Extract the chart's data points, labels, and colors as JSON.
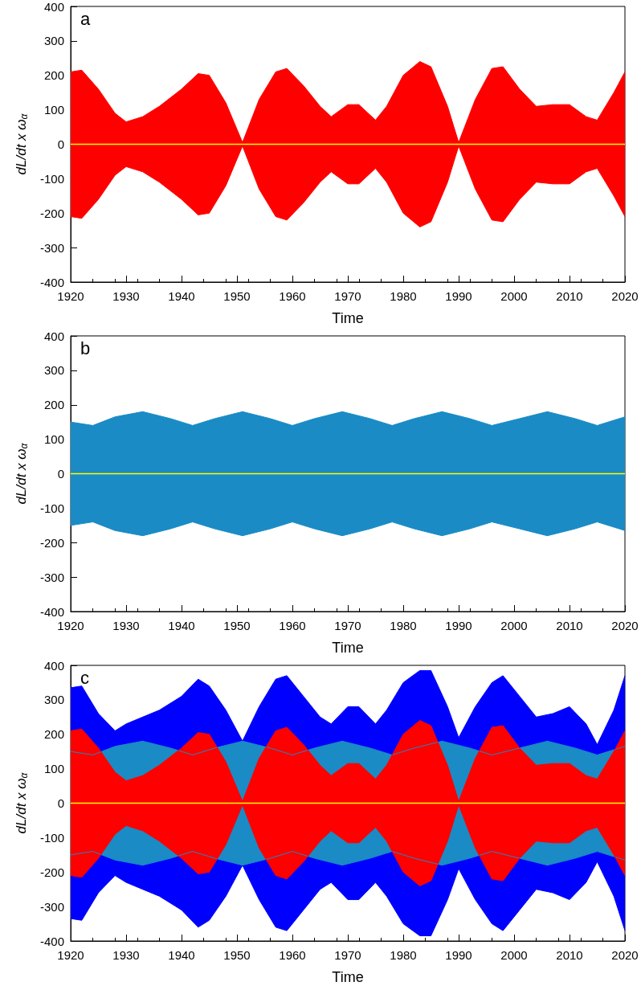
{
  "chart_data": [
    {
      "type": "area",
      "annotations": [
        "a"
      ],
      "xlabel": "Time",
      "ylabel": "dL/dt x ω$_{α}$",
      "xlim": [
        1920,
        2020
      ],
      "xticks": [
        1920,
        1930,
        1940,
        1950,
        1960,
        1970,
        1980,
        1990,
        2000,
        2010,
        2020
      ],
      "ylim": [
        -400,
        400
      ],
      "yticks": [
        -400,
        -300,
        -200,
        -100,
        0,
        100,
        200,
        300,
        400
      ],
      "ref_lines": [
        {
          "axis": "y",
          "value": 0,
          "color": "#ffff00"
        }
      ],
      "series": [
        {
          "color": "#ff0000",
          "x": [
            1920,
            1922,
            1925,
            1928,
            1930,
            1933,
            1936,
            1940,
            1943,
            1945,
            1948,
            1951,
            1954,
            1957,
            1959,
            1962,
            1965,
            1967,
            1970,
            1972,
            1975,
            1977,
            1980,
            1983,
            1985,
            1988,
            1990,
            1993,
            1996,
            1998,
            2001,
            2004,
            2007,
            2010,
            2013,
            2015,
            2018,
            2020
          ],
          "values": [
            210,
            215,
            160,
            90,
            65,
            80,
            110,
            160,
            205,
            200,
            120,
            5,
            130,
            210,
            220,
            170,
            110,
            80,
            115,
            115,
            70,
            110,
            200,
            240,
            225,
            110,
            5,
            130,
            220,
            225,
            160,
            110,
            115,
            115,
            80,
            70,
            150,
            210
          ]
        },
        {
          "color": "#ff0000",
          "x": [
            1920,
            1922,
            1925,
            1928,
            1930,
            1933,
            1936,
            1940,
            1943,
            1945,
            1948,
            1951,
            1954,
            1957,
            1959,
            1962,
            1965,
            1967,
            1970,
            1972,
            1975,
            1977,
            1980,
            1983,
            1985,
            1988,
            1990,
            1993,
            1996,
            1998,
            2001,
            2004,
            2007,
            2010,
            2013,
            2015,
            2018,
            2020
          ],
          "values": [
            -210,
            -215,
            -160,
            -90,
            -65,
            -80,
            -110,
            -160,
            -205,
            -200,
            -120,
            -5,
            -130,
            -210,
            -220,
            -170,
            -110,
            -80,
            -115,
            -115,
            -70,
            -110,
            -200,
            -240,
            -225,
            -110,
            -5,
            -130,
            -220,
            -225,
            -160,
            -110,
            -115,
            -115,
            -80,
            -70,
            -150,
            -210
          ]
        }
      ]
    },
    {
      "type": "area",
      "annotations": [
        "b"
      ],
      "xlabel": "Time",
      "ylabel": "dL/dt x ω$_{α}$",
      "xlim": [
        1920,
        2020
      ],
      "xticks": [
        1920,
        1930,
        1940,
        1950,
        1960,
        1970,
        1980,
        1990,
        2000,
        2010,
        2020
      ],
      "ylim": [
        -400,
        400
      ],
      "yticks": [
        -400,
        -300,
        -200,
        -100,
        0,
        100,
        200,
        300,
        400
      ],
      "ref_lines": [
        {
          "axis": "y",
          "value": 0,
          "color": "#ffff00"
        }
      ],
      "series": [
        {
          "color": "#1a8bc5",
          "x": [
            1920,
            1924,
            1928,
            1933,
            1938,
            1942,
            1946,
            1951,
            1956,
            1960,
            1964,
            1969,
            1974,
            1978,
            1982,
            1987,
            1992,
            1996,
            2001,
            2006,
            2011,
            2015,
            2020
          ],
          "values": [
            150,
            140,
            165,
            180,
            160,
            140,
            160,
            180,
            160,
            140,
            160,
            180,
            160,
            140,
            160,
            180,
            160,
            140,
            160,
            180,
            160,
            140,
            165
          ]
        },
        {
          "color": "#1a8bc5",
          "x": [
            1920,
            1924,
            1928,
            1933,
            1938,
            1942,
            1946,
            1951,
            1956,
            1960,
            1964,
            1969,
            1974,
            1978,
            1982,
            1987,
            1992,
            1996,
            2001,
            2006,
            2011,
            2015,
            2020
          ],
          "values": [
            -150,
            -140,
            -165,
            -180,
            -160,
            -140,
            -160,
            -180,
            -160,
            -140,
            -160,
            -180,
            -160,
            -140,
            -160,
            -180,
            -160,
            -140,
            -160,
            -180,
            -160,
            -140,
            -165
          ]
        }
      ]
    },
    {
      "type": "area",
      "annotations": [
        "c"
      ],
      "xlabel": "Time",
      "ylabel": "dL/dt x ω$_{α}$",
      "xlim": [
        1920,
        2020
      ],
      "xticks": [
        1920,
        1930,
        1940,
        1950,
        1960,
        1970,
        1980,
        1990,
        2000,
        2010,
        2020
      ],
      "ylim": [
        -400,
        400
      ],
      "yticks": [
        -400,
        -300,
        -200,
        -100,
        0,
        100,
        200,
        300,
        400
      ],
      "ref_lines": [
        {
          "axis": "y",
          "value": 0,
          "color": "#ffff00"
        }
      ],
      "series": [
        {
          "color": "#0000ff",
          "x": [
            1920,
            1922,
            1925,
            1928,
            1930,
            1933,
            1936,
            1940,
            1943,
            1945,
            1948,
            1951,
            1954,
            1957,
            1959,
            1962,
            1965,
            1967,
            1970,
            1972,
            1975,
            1977,
            1980,
            1983,
            1985,
            1988,
            1990,
            1993,
            1996,
            1998,
            2001,
            2004,
            2007,
            2010,
            2013,
            2015,
            2018,
            2020
          ],
          "values": [
            335,
            340,
            260,
            210,
            230,
            250,
            270,
            310,
            360,
            340,
            270,
            180,
            280,
            360,
            370,
            310,
            250,
            230,
            280,
            280,
            230,
            270,
            350,
            385,
            385,
            280,
            190,
            280,
            350,
            370,
            310,
            250,
            260,
            280,
            230,
            170,
            270,
            370
          ]
        },
        {
          "color": "#0000ff",
          "x": [
            1920,
            1922,
            1925,
            1928,
            1930,
            1933,
            1936,
            1940,
            1943,
            1945,
            1948,
            1951,
            1954,
            1957,
            1959,
            1962,
            1965,
            1967,
            1970,
            1972,
            1975,
            1977,
            1980,
            1983,
            1985,
            1988,
            1990,
            1993,
            1996,
            1998,
            2001,
            2004,
            2007,
            2010,
            2013,
            2015,
            2018,
            2020
          ],
          "values": [
            -335,
            -340,
            -260,
            -210,
            -230,
            -250,
            -270,
            -310,
            -360,
            -340,
            -270,
            -180,
            -280,
            -360,
            -370,
            -310,
            -250,
            -230,
            -280,
            -280,
            -230,
            -270,
            -350,
            -385,
            -385,
            -280,
            -190,
            -280,
            -350,
            -370,
            -310,
            -250,
            -260,
            -280,
            -230,
            -170,
            -270,
            -370
          ]
        },
        {
          "color": "#1a8bc5",
          "x": [
            1920,
            1924,
            1928,
            1933,
            1938,
            1942,
            1946,
            1951,
            1956,
            1960,
            1964,
            1969,
            1974,
            1978,
            1982,
            1987,
            1992,
            1996,
            2001,
            2006,
            2011,
            2015,
            2020
          ],
          "values": [
            150,
            140,
            165,
            180,
            160,
            140,
            160,
            180,
            160,
            140,
            160,
            180,
            160,
            140,
            160,
            180,
            160,
            140,
            160,
            180,
            160,
            140,
            165
          ]
        },
        {
          "color": "#1a8bc5",
          "x": [
            1920,
            1924,
            1928,
            1933,
            1938,
            1942,
            1946,
            1951,
            1956,
            1960,
            1964,
            1969,
            1974,
            1978,
            1982,
            1987,
            1992,
            1996,
            2001,
            2006,
            2011,
            2015,
            2020
          ],
          "values": [
            -150,
            -140,
            -165,
            -180,
            -160,
            -140,
            -160,
            -180,
            -160,
            -140,
            -160,
            -180,
            -160,
            -140,
            -160,
            -180,
            -160,
            -140,
            -160,
            -180,
            -160,
            -140,
            -165
          ]
        },
        {
          "color": "#ff0000",
          "x": [
            1920,
            1922,
            1925,
            1928,
            1930,
            1933,
            1936,
            1940,
            1943,
            1945,
            1948,
            1951,
            1954,
            1957,
            1959,
            1962,
            1965,
            1967,
            1970,
            1972,
            1975,
            1977,
            1980,
            1983,
            1985,
            1988,
            1990,
            1993,
            1996,
            1998,
            2001,
            2004,
            2007,
            2010,
            2013,
            2015,
            2018,
            2020
          ],
          "values": [
            210,
            215,
            160,
            90,
            65,
            80,
            110,
            160,
            205,
            200,
            120,
            5,
            130,
            210,
            220,
            170,
            110,
            80,
            115,
            115,
            70,
            110,
            200,
            240,
            225,
            110,
            5,
            130,
            220,
            225,
            160,
            110,
            115,
            115,
            80,
            70,
            150,
            210
          ]
        },
        {
          "color": "#ff0000",
          "x": [
            1920,
            1922,
            1925,
            1928,
            1930,
            1933,
            1936,
            1940,
            1943,
            1945,
            1948,
            1951,
            1954,
            1957,
            1959,
            1962,
            1965,
            1967,
            1970,
            1972,
            1975,
            1977,
            1980,
            1983,
            1985,
            1988,
            1990,
            1993,
            1996,
            1998,
            2001,
            2004,
            2007,
            2010,
            2013,
            2015,
            2018,
            2020
          ],
          "values": [
            -210,
            -215,
            -160,
            -90,
            -65,
            -80,
            -110,
            -160,
            -205,
            -200,
            -120,
            -5,
            -130,
            -210,
            -220,
            -170,
            -110,
            -80,
            -115,
            -115,
            -70,
            -110,
            -200,
            -240,
            -225,
            -110,
            -5,
            -130,
            -220,
            -225,
            -160,
            -110,
            -115,
            -115,
            -80,
            -70,
            -150,
            -210
          ]
        }
      ]
    }
  ]
}
